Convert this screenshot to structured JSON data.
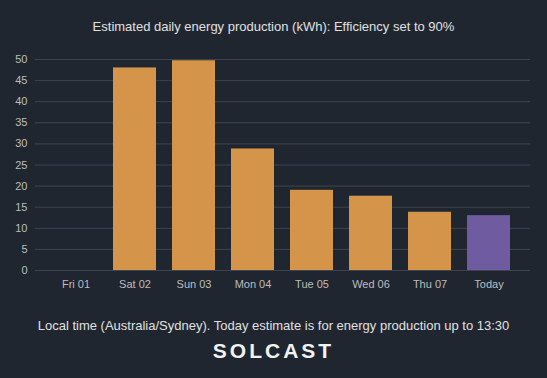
{
  "chart_data": {
    "type": "bar",
    "title": "Estimated daily energy production (kWh): Efficiency set to 90%",
    "categories": [
      "Fri 01",
      "Sat 02",
      "Sun 03",
      "Mon 04",
      "Tue 05",
      "Wed 06",
      "Thu 07",
      "Today"
    ],
    "values": [
      0,
      48,
      49.7,
      28.8,
      19,
      17.6,
      13.8,
      13
    ],
    "colors": [
      "#d4954a",
      "#d4954a",
      "#d4954a",
      "#d4954a",
      "#d4954a",
      "#d4954a",
      "#d4954a",
      "#6e5ba0"
    ],
    "ylim": [
      0,
      50
    ],
    "yticks": [
      0,
      5,
      10,
      15,
      20,
      25,
      30,
      35,
      40,
      45,
      50
    ],
    "grid": true,
    "caption": "Local time (Australia/Sydney). Today estimate is for energy production up to 13:30",
    "logo": "SOLCAST"
  }
}
